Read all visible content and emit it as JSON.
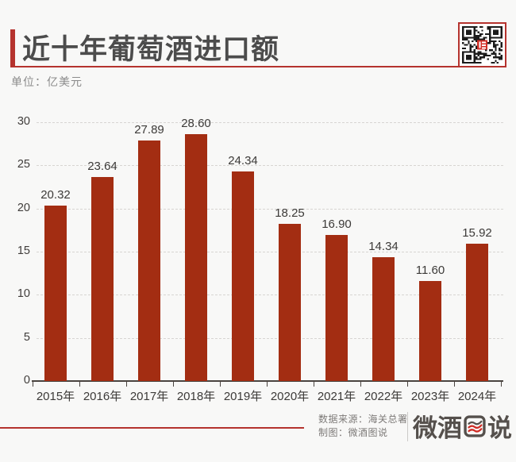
{
  "page": {
    "background": "#f8f8f7",
    "accent_red": "#b5332e",
    "bar_red": "#a32d12"
  },
  "header": {
    "title": "近十年葡萄酒进口额",
    "unit_label": "单位：亿美元",
    "qr_icon": "qr-code-icon"
  },
  "chart_data": {
    "type": "bar",
    "title": "近十年葡萄酒进口额",
    "unit": "亿美元",
    "categories": [
      "2015年",
      "2016年",
      "2017年",
      "2018年",
      "2019年",
      "2020年",
      "2021年",
      "2022年",
      "2023年",
      "2024年"
    ],
    "values": [
      20.32,
      23.64,
      27.89,
      28.6,
      24.34,
      18.25,
      16.9,
      14.34,
      11.6,
      15.92
    ],
    "value_labels": [
      "20.32",
      "23.64",
      "27.89",
      "28.60",
      "24.34",
      "18.25",
      "16.90",
      "14.34",
      "11.60",
      "15.92"
    ],
    "xlabel": "",
    "ylabel": "",
    "ylim": [
      0,
      30
    ],
    "yticks": [
      0,
      5,
      10,
      15,
      20,
      25,
      30
    ],
    "grid": "horizontal-dashed",
    "legend": "none",
    "bar_color": "#a32d12"
  },
  "footer": {
    "source_line": "数据来源：海关总署",
    "credit_line": "制图：微酒图说",
    "logo": {
      "text": "微酒图说",
      "wei": "微",
      "jiu": "酒",
      "shuo": "说",
      "tu_mark_icon": "wavy-lines-square-icon"
    }
  }
}
